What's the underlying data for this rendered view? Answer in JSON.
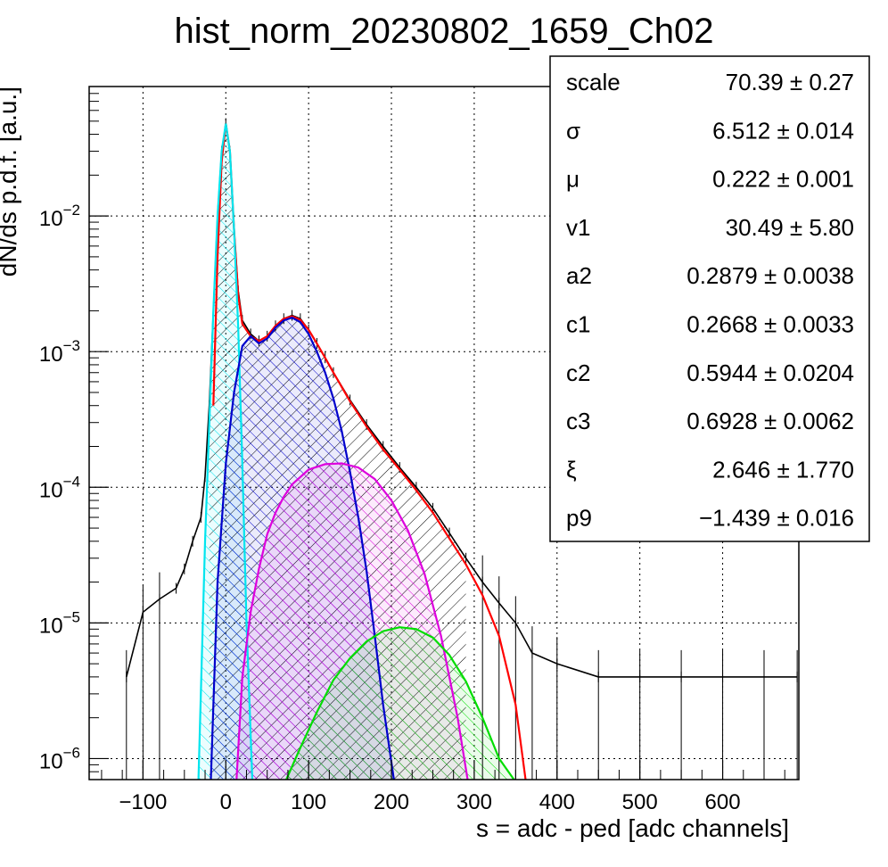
{
  "chart_data": {
    "type": "line",
    "title": "hist_norm_20230802_1659_Ch02",
    "xlabel": "s = adc - ped [adc channels]",
    "ylabel": "dN/ds p.d.f. [a.u.]",
    "xlim": [
      -165,
      692
    ],
    "ylim": [
      7e-07,
      0.09
    ],
    "y_scale": "log",
    "grid": true,
    "x_ticks": [
      {
        "value": -100,
        "label": "−100"
      },
      {
        "value": 0,
        "label": "0"
      },
      {
        "value": 100,
        "label": "100"
      },
      {
        "value": 200,
        "label": "200"
      },
      {
        "value": 300,
        "label": "300"
      },
      {
        "value": 400,
        "label": "400"
      },
      {
        "value": 500,
        "label": "500"
      },
      {
        "value": 600,
        "label": "600"
      }
    ],
    "y_ticks": [
      {
        "value": 1e-06,
        "base": "10",
        "exp": "−6"
      },
      {
        "value": 1e-05,
        "base": "10",
        "exp": "−5"
      },
      {
        "value": 0.0001,
        "base": "10",
        "exp": "−4"
      },
      {
        "value": 0.001,
        "base": "10",
        "exp": "−3"
      },
      {
        "value": 0.01,
        "base": "10",
        "exp": "−2"
      }
    ],
    "histogram": {
      "color": "#000000",
      "points": [
        [
          -120,
          4e-06
        ],
        [
          -100,
          1.2e-05
        ],
        [
          -80,
          1.5e-05
        ],
        [
          -60,
          1.8e-05
        ],
        [
          -50,
          2.5e-05
        ],
        [
          -40,
          4e-05
        ],
        [
          -30,
          6e-05
        ],
        [
          -25,
          0.00012
        ],
        [
          -20,
          0.0004
        ],
        [
          -15,
          0.002
        ],
        [
          -10,
          0.01
        ],
        [
          -5,
          0.03
        ],
        [
          0,
          0.048
        ],
        [
          5,
          0.03
        ],
        [
          10,
          0.008
        ],
        [
          15,
          0.0028
        ],
        [
          20,
          0.0017
        ],
        [
          30,
          0.00135
        ],
        [
          40,
          0.0012
        ],
        [
          50,
          0.0013
        ],
        [
          60,
          0.00155
        ],
        [
          70,
          0.00175
        ],
        [
          80,
          0.00185
        ],
        [
          90,
          0.00175
        ],
        [
          100,
          0.00145
        ],
        [
          110,
          0.00115
        ],
        [
          120,
          0.0009
        ],
        [
          130,
          0.0007
        ],
        [
          150,
          0.00044
        ],
        [
          170,
          0.00029
        ],
        [
          190,
          0.0002
        ],
        [
          210,
          0.00014
        ],
        [
          230,
          0.0001
        ],
        [
          250,
          7e-05
        ],
        [
          270,
          4.6e-05
        ],
        [
          290,
          3e-05
        ],
        [
          310,
          2e-05
        ],
        [
          330,
          1.4e-05
        ],
        [
          350,
          1e-05
        ],
        [
          370,
          6e-06
        ],
        [
          400,
          5e-06
        ],
        [
          450,
          4e-06
        ],
        [
          500,
          4e-06
        ],
        [
          550,
          4e-06
        ],
        [
          600,
          4e-06
        ],
        [
          650,
          4e-06
        ],
        [
          690,
          4e-06
        ]
      ]
    },
    "series": [
      {
        "color": "#ff0000",
        "fill": "none",
        "points": [
          [
            -15,
            0.0004
          ],
          [
            -10,
            0.005
          ],
          [
            -5,
            0.025
          ],
          [
            0,
            0.048
          ],
          [
            5,
            0.03
          ],
          [
            10,
            0.008
          ],
          [
            15,
            0.0026
          ],
          [
            20,
            0.0016
          ],
          [
            30,
            0.0013
          ],
          [
            40,
            0.0012
          ],
          [
            50,
            0.0013
          ],
          [
            60,
            0.00155
          ],
          [
            70,
            0.00175
          ],
          [
            80,
            0.00182
          ],
          [
            90,
            0.00172
          ],
          [
            100,
            0.00145
          ],
          [
            110,
            0.00115
          ],
          [
            120,
            0.0009
          ],
          [
            130,
            0.0007
          ],
          [
            150,
            0.00043
          ],
          [
            170,
            0.00028
          ],
          [
            190,
            0.00019
          ],
          [
            210,
            0.000135
          ],
          [
            230,
            9.5e-05
          ],
          [
            250,
            6.5e-05
          ],
          [
            270,
            4.2e-05
          ],
          [
            290,
            2.7e-05
          ],
          [
            310,
            1.6e-05
          ],
          [
            330,
            8e-06
          ],
          [
            350,
            2.5e-06
          ],
          [
            362,
            7e-07
          ]
        ]
      },
      {
        "color": "#00e5ee",
        "fill": "#00e5ee",
        "points": [
          [
            -33,
            7e-07
          ],
          [
            -25,
            4e-05
          ],
          [
            -15,
            0.002
          ],
          [
            -10,
            0.01
          ],
          [
            -5,
            0.03
          ],
          [
            0,
            0.048
          ],
          [
            5,
            0.03
          ],
          [
            10,
            0.008
          ],
          [
            15,
            0.0015
          ],
          [
            20,
            0.00015
          ],
          [
            25,
            1e-05
          ],
          [
            32,
            7e-07
          ]
        ]
      },
      {
        "color": "#0000cc",
        "fill": "#0000cc",
        "points": [
          [
            -18,
            7e-07
          ],
          [
            -10,
            2e-05
          ],
          [
            0,
            0.00015
          ],
          [
            10,
            0.0005
          ],
          [
            20,
            0.0011
          ],
          [
            30,
            0.0013
          ],
          [
            40,
            0.00115
          ],
          [
            50,
            0.00125
          ],
          [
            60,
            0.0015
          ],
          [
            70,
            0.0017
          ],
          [
            80,
            0.00178
          ],
          [
            90,
            0.00165
          ],
          [
            100,
            0.00135
          ],
          [
            110,
            0.001
          ],
          [
            120,
            0.0007
          ],
          [
            130,
            0.00045
          ],
          [
            140,
            0.00026
          ],
          [
            150,
            0.00013
          ],
          [
            160,
            6e-05
          ],
          [
            170,
            2.4e-05
          ],
          [
            180,
            8e-06
          ],
          [
            190,
            2.5e-06
          ],
          [
            203,
            7e-07
          ]
        ]
      },
      {
        "color": "#dd00dd",
        "fill": "#dd00dd",
        "points": [
          [
            13,
            7e-07
          ],
          [
            20,
            4e-06
          ],
          [
            30,
            1.2e-05
          ],
          [
            40,
            2.5e-05
          ],
          [
            50,
            4.5e-05
          ],
          [
            60,
            6.5e-05
          ],
          [
            70,
            8.5e-05
          ],
          [
            80,
            0.000105
          ],
          [
            100,
            0.000135
          ],
          [
            120,
            0.000148
          ],
          [
            140,
            0.00015
          ],
          [
            160,
            0.00014
          ],
          [
            180,
            0.000115
          ],
          [
            200,
            8e-05
          ],
          [
            220,
            4.8e-05
          ],
          [
            240,
            2.3e-05
          ],
          [
            260,
            8e-06
          ],
          [
            280,
            2e-06
          ],
          [
            292,
            7e-07
          ]
        ]
      },
      {
        "color": "#00dd00",
        "fill": "#00dd00",
        "points": [
          [
            73,
            7e-07
          ],
          [
            90,
            1.2e-06
          ],
          [
            110,
            2.2e-06
          ],
          [
            130,
            3.8e-06
          ],
          [
            150,
            5.5e-06
          ],
          [
            170,
            7.3e-06
          ],
          [
            190,
            8.7e-06
          ],
          [
            210,
            9.3e-06
          ],
          [
            230,
            9e-06
          ],
          [
            250,
            7.8e-06
          ],
          [
            270,
            5.8e-06
          ],
          [
            290,
            3.7e-06
          ],
          [
            310,
            2e-06
          ],
          [
            330,
            1e-06
          ],
          [
            348,
            7e-07
          ]
        ]
      }
    ],
    "stats": [
      {
        "name": "scale",
        "value": "70.39 ± 0.27"
      },
      {
        "name": "σ",
        "value": "6.512 ± 0.014"
      },
      {
        "name": "μ",
        "value": "0.222 ± 0.001"
      },
      {
        "name": "v1",
        "value": "30.49 ± 5.80"
      },
      {
        "name": "a2",
        "value": "0.2879 ± 0.0038"
      },
      {
        "name": "c1",
        "value": "0.2668 ± 0.0033"
      },
      {
        "name": "c2",
        "value": "0.5944 ± 0.0204"
      },
      {
        "name": "c3",
        "value": "0.6928 ± 0.0062"
      },
      {
        "name": "ξ",
        "value": "2.646 ± 1.770"
      },
      {
        "name": "p9",
        "value": "−1.439 ± 0.016"
      }
    ]
  }
}
